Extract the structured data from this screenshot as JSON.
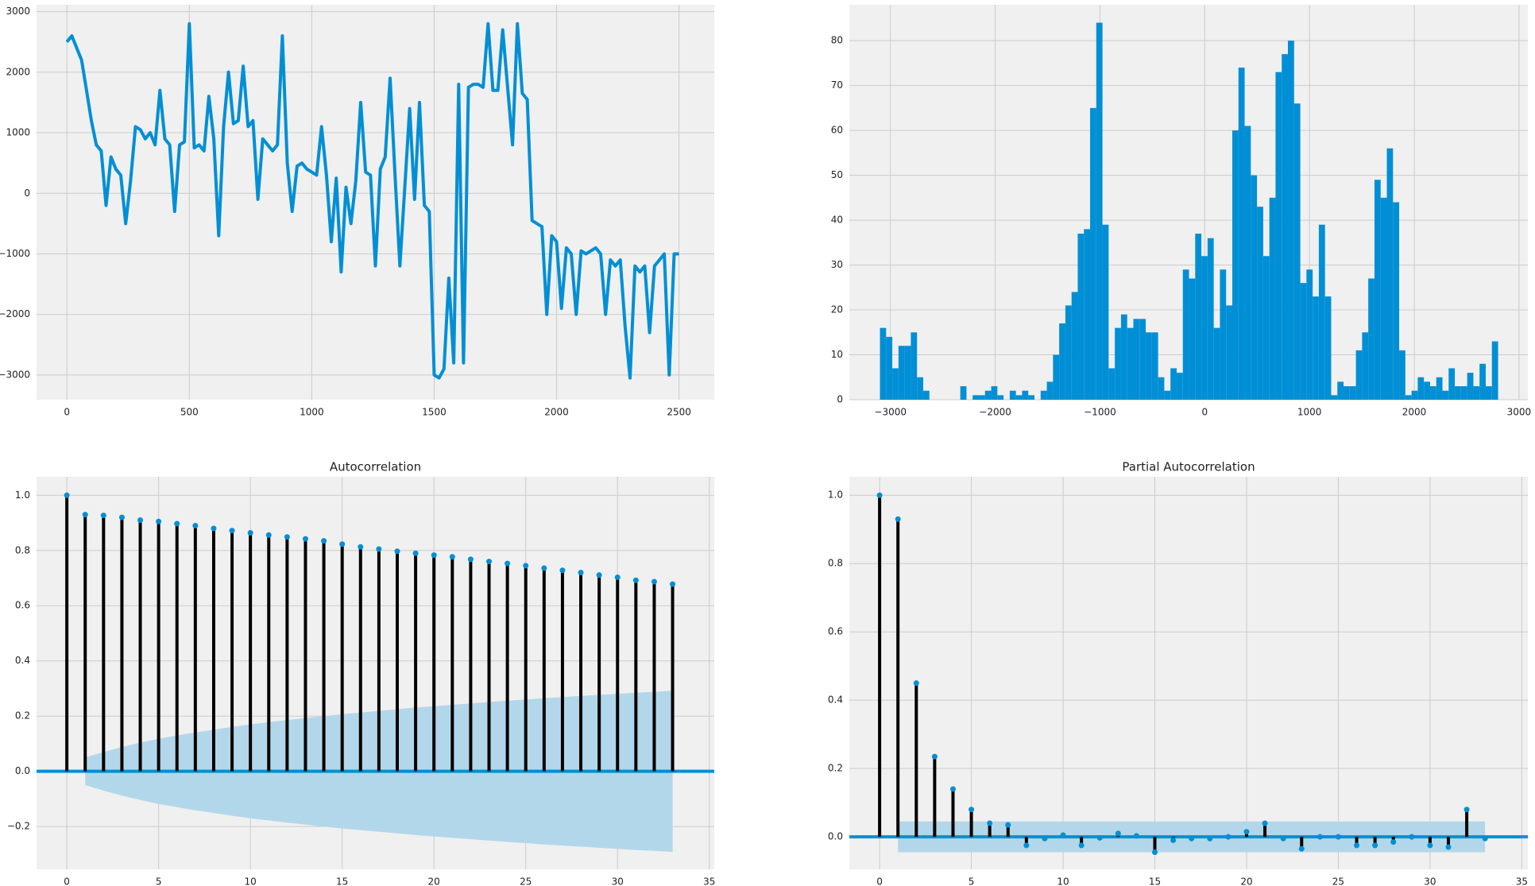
{
  "chart_data": [
    {
      "type": "line",
      "color": "#008fd5",
      "grid": true,
      "x": [
        0,
        20,
        40,
        60,
        80,
        100,
        120,
        140,
        160,
        180,
        200,
        220,
        240,
        260,
        280,
        300,
        320,
        340,
        360,
        380,
        400,
        420,
        440,
        460,
        480,
        500,
        520,
        540,
        560,
        580,
        600,
        620,
        640,
        660,
        680,
        700,
        720,
        740,
        760,
        780,
        800,
        820,
        840,
        860,
        880,
        900,
        920,
        940,
        960,
        980,
        1000,
        1020,
        1040,
        1060,
        1080,
        1100,
        1120,
        1140,
        1160,
        1180,
        1200,
        1220,
        1240,
        1260,
        1280,
        1300,
        1320,
        1340,
        1360,
        1380,
        1400,
        1420,
        1440,
        1460,
        1480,
        1500,
        1520,
        1540,
        1560,
        1580,
        1600,
        1620,
        1640,
        1660,
        1680,
        1700,
        1720,
        1740,
        1760,
        1780,
        1800,
        1820,
        1840,
        1860,
        1880,
        1900,
        1920,
        1940,
        1960,
        1980,
        2000,
        2020,
        2040,
        2060,
        2080,
        2100,
        2120,
        2140,
        2160,
        2180,
        2200,
        2220,
        2240,
        2260,
        2280,
        2300,
        2320,
        2340,
        2360,
        2380,
        2400,
        2420,
        2440,
        2460,
        2480,
        2500
      ],
      "values": [
        2500,
        2600,
        2400,
        2200,
        1700,
        1200,
        800,
        700,
        -200,
        600,
        400,
        300,
        -500,
        200,
        1100,
        1050,
        900,
        1000,
        800,
        1700,
        900,
        800,
        -300,
        800,
        850,
        2800,
        750,
        800,
        700,
        1600,
        900,
        -700,
        1100,
        2000,
        1150,
        1200,
        2100,
        1100,
        1200,
        -100,
        900,
        800,
        700,
        800,
        2600,
        500,
        -300,
        450,
        500,
        400,
        350,
        300,
        1100,
        300,
        -800,
        250,
        -1300,
        100,
        -500,
        200,
        1500,
        350,
        300,
        -1200,
        400,
        600,
        1900,
        300,
        -1200,
        100,
        1400,
        -100,
        1500,
        -200,
        -300,
        -3000,
        -3050,
        -2900,
        -1400,
        -2800,
        1800,
        -2800,
        1750,
        1800,
        1800,
        1750,
        2800,
        1700,
        1700,
        2700,
        1750,
        800,
        2800,
        1650,
        1550,
        -450,
        -500,
        -550,
        -2000,
        -700,
        -800,
        -1900,
        -900,
        -1000,
        -2000,
        -950,
        -1000,
        -950,
        -900,
        -1000,
        -2000,
        -1100,
        -1200,
        -1100,
        -2200,
        -3050,
        -1200,
        -1300,
        -1200,
        -2300,
        -1200,
        -1100,
        -1000,
        -3000,
        -1000,
        -1000
      ],
      "xlim": [
        -124,
        2644
      ],
      "xticks": [
        0,
        500,
        1000,
        1500,
        2000,
        2500
      ],
      "ylim": [
        -3408,
        3113
      ],
      "yticks": [
        {
          "value": -3000,
          "label": "−3000"
        },
        {
          "value": -2000,
          "label": "−2000"
        },
        {
          "value": -1000,
          "label": "−1000"
        },
        0,
        1000,
        2000,
        3000
      ]
    },
    {
      "type": "histogram",
      "color": "#008fd5",
      "grid": true,
      "bins": [
        -3100,
        -3041,
        -2982,
        -2923,
        -2864,
        -2805,
        -2746,
        -2687,
        -2628,
        -2569,
        -2510,
        -2451,
        -2392,
        -2333,
        -2274,
        -2215,
        -2156,
        -2097,
        -2038,
        -1979,
        -1920,
        -1861,
        -1802,
        -1743,
        -1684,
        -1625,
        -1566,
        -1507,
        -1448,
        -1389,
        -1330,
        -1271,
        -1212,
        -1153,
        -1094,
        -1035,
        -976,
        -917,
        -858,
        -799,
        -740,
        -681,
        -622,
        -563,
        -504,
        -445,
        -386,
        -327,
        -268,
        -209,
        -150,
        -91,
        -32,
        27,
        86,
        145,
        204,
        263,
        322,
        381,
        440,
        499,
        558,
        617,
        676,
        735,
        794,
        853,
        912,
        971,
        1030,
        1089,
        1148,
        1207,
        1266,
        1325,
        1384,
        1443,
        1502,
        1561,
        1620,
        1679,
        1738,
        1797,
        1856,
        1915,
        1974,
        2033,
        2092,
        2151,
        2210,
        2269,
        2328,
        2387,
        2446,
        2505,
        2564,
        2623,
        2682,
        2741,
        2800
      ],
      "counts": [
        16,
        14,
        7,
        12,
        12,
        15,
        5,
        2,
        0,
        0,
        0,
        0,
        0,
        3,
        0,
        1,
        1,
        2,
        3,
        1,
        0,
        2,
        1,
        2,
        1,
        0,
        2,
        4,
        10,
        17,
        21,
        24,
        37,
        38,
        65,
        84,
        39,
        7,
        16,
        19,
        16,
        18,
        18,
        15,
        15,
        5,
        2,
        7,
        6,
        29,
        27,
        37,
        32,
        36,
        16,
        29,
        21,
        60,
        74,
        61,
        50,
        43,
        32,
        45,
        73,
        77,
        80,
        66,
        26,
        29,
        23,
        39,
        23,
        1,
        4,
        3,
        3,
        11,
        15,
        27,
        49,
        45,
        56,
        44,
        11,
        1,
        2,
        5,
        4,
        3,
        5,
        2,
        7,
        3,
        3,
        6,
        3,
        8,
        3,
        13
      ],
      "xlim": [
        -3392,
        3084
      ],
      "xticks": [
        {
          "value": -3000,
          "label": "−3000"
        },
        {
          "value": -2000,
          "label": "−2000"
        },
        {
          "value": -1000,
          "label": "−1000"
        },
        0,
        1000,
        2000,
        3000
      ],
      "ylim": [
        0,
        88
      ],
      "yticks": [
        0,
        10,
        20,
        30,
        40,
        50,
        60,
        70,
        80
      ]
    },
    {
      "type": "stem",
      "title": "Autocorrelation",
      "color": "#008fd5",
      "stem_color": "#000000",
      "band_color": "#b3d7ea",
      "grid": true,
      "x": [
        0,
        1,
        2,
        3,
        4,
        5,
        6,
        7,
        8,
        9,
        10,
        11,
        12,
        13,
        14,
        15,
        16,
        17,
        18,
        19,
        20,
        21,
        22,
        23,
        24,
        25,
        26,
        27,
        28,
        29,
        30,
        31,
        32,
        33
      ],
      "values": [
        1.0,
        0.93,
        0.927,
        0.92,
        0.91,
        0.905,
        0.897,
        0.89,
        0.88,
        0.872,
        0.864,
        0.856,
        0.849,
        0.842,
        0.835,
        0.823,
        0.813,
        0.805,
        0.797,
        0.79,
        0.783,
        0.777,
        0.768,
        0.76,
        0.753,
        0.745,
        0.736,
        0.728,
        0.72,
        0.711,
        0.703,
        0.692,
        0.687,
        0.678
      ],
      "confint": [
        null,
        0.05,
        0.07,
        0.088,
        0.104,
        0.118,
        0.13,
        0.141,
        0.151,
        0.161,
        0.17,
        0.178,
        0.186,
        0.193,
        0.2,
        0.207,
        0.213,
        0.219,
        0.225,
        0.231,
        0.236,
        0.241,
        0.246,
        0.251,
        0.256,
        0.26,
        0.265,
        0.269,
        0.273,
        0.277,
        0.281,
        0.285,
        0.288,
        0.292
      ],
      "xlim": [
        -1.65,
        35.27
      ],
      "xticks": [
        0,
        5,
        10,
        15,
        20,
        25,
        30,
        35
      ],
      "ylim": [
        -0.355,
        1.067
      ],
      "yticks": [
        {
          "value": -0.2,
          "label": "−0.2"
        },
        {
          "value": 0,
          "label": "0.0"
        },
        0.2,
        0.4,
        0.6,
        0.8,
        {
          "value": 1,
          "label": "1.0"
        }
      ]
    },
    {
      "type": "stem",
      "title": "Partial Autocorrelation",
      "color": "#008fd5",
      "stem_color": "#000000",
      "band_color": "#b3d7ea",
      "grid": true,
      "x": [
        0,
        1,
        2,
        3,
        4,
        5,
        6,
        7,
        8,
        9,
        10,
        11,
        12,
        13,
        14,
        15,
        16,
        17,
        18,
        19,
        20,
        21,
        22,
        23,
        24,
        25,
        26,
        27,
        28,
        29,
        30,
        31,
        32,
        33
      ],
      "values": [
        1.0,
        0.93,
        0.45,
        0.235,
        0.14,
        0.08,
        0.04,
        0.035,
        -0.025,
        -0.005,
        0.005,
        -0.025,
        -0.003,
        0.01,
        0.003,
        -0.045,
        -0.01,
        -0.005,
        -0.005,
        0.0,
        0.015,
        0.04,
        -0.005,
        -0.035,
        0.0,
        0.0,
        -0.025,
        -0.025,
        -0.015,
        0.0,
        -0.025,
        -0.03,
        0.08,
        -0.005
      ],
      "confint": [
        null,
        0.045,
        0.045,
        0.045,
        0.045,
        0.045,
        0.045,
        0.045,
        0.045,
        0.045,
        0.045,
        0.045,
        0.045,
        0.045,
        0.045,
        0.045,
        0.045,
        0.045,
        0.045,
        0.045,
        0.045,
        0.045,
        0.045,
        0.045,
        0.045,
        0.045,
        0.045,
        0.045,
        0.045,
        0.045,
        0.045,
        0.045,
        0.045,
        0.045
      ],
      "xlim": [
        -1.65,
        35.33
      ],
      "xticks": [
        0,
        5,
        10,
        15,
        20,
        25,
        30,
        35
      ],
      "ylim": [
        -0.095,
        1.054
      ],
      "yticks": [
        {
          "value": 0,
          "label": "0.0"
        },
        0.2,
        0.4,
        0.6,
        0.8,
        {
          "value": 1,
          "label": "1.0"
        }
      ]
    }
  ]
}
